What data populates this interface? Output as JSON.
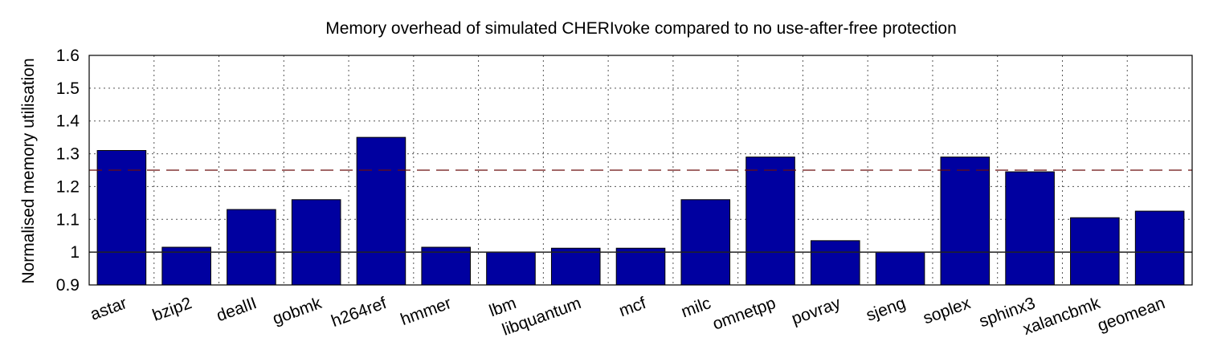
{
  "chart_data": {
    "type": "bar",
    "title": "Memory overhead of simulated CHERIvoke compared to no use-after-free protection",
    "xlabel": "",
    "ylabel": "Normalised memory utilisation",
    "ylim": [
      0.9,
      1.6
    ],
    "yticks": [
      "0.9",
      "1",
      "1.1",
      "1.2",
      "1.3",
      "1.4",
      "1.5",
      "1.6"
    ],
    "grid": true,
    "categories": [
      "astar",
      "bzip2",
      "dealII",
      "gobmk",
      "h264ref",
      "hmmer",
      "lbm",
      "libquantum",
      "mcf",
      "milc",
      "omnetpp",
      "povray",
      "sjeng",
      "soplex",
      "sphinx3",
      "xalancbmk",
      "geomean"
    ],
    "values": [
      1.31,
      1.015,
      1.13,
      1.16,
      1.35,
      1.015,
      1.0,
      1.012,
      1.012,
      1.16,
      1.29,
      1.035,
      1.0,
      1.29,
      1.245,
      1.105,
      1.125
    ],
    "reference_lines": [
      {
        "y": 1.0,
        "style": "solid"
      },
      {
        "y": 1.25,
        "style": "dashed"
      }
    ],
    "colors": {
      "bar": "#0000a0",
      "dashed_line": "#6b0f0f"
    }
  }
}
